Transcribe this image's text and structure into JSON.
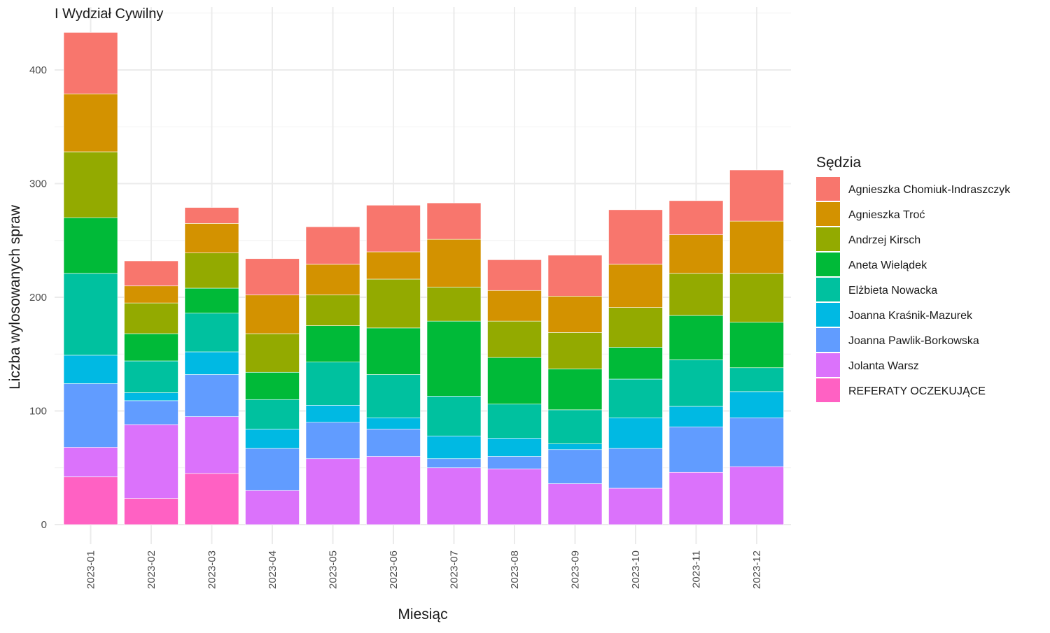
{
  "chart_data": {
    "type": "bar",
    "stacked": true,
    "title": "I Wydział Cywilny",
    "xlabel": "Miesiąc",
    "ylabel": "Liczba wylosowanych spraw",
    "ylim": [
      0,
      432
    ],
    "yticks": [
      0,
      100,
      200,
      300,
      400
    ],
    "grid": true,
    "legend_title": "Sędzia",
    "legend_position": "right",
    "categories": [
      "2023-01",
      "2023-02",
      "2023-03",
      "2023-04",
      "2023-05",
      "2023-06",
      "2023-07",
      "2023-08",
      "2023-09",
      "2023-10",
      "2023-11",
      "2023-12"
    ],
    "series": [
      {
        "name": "Agnieszka Chomiuk-Indraszczyk",
        "color": "#F8766D",
        "values": [
          54,
          22,
          14,
          32,
          33,
          41,
          32,
          27,
          36,
          48,
          30,
          45
        ]
      },
      {
        "name": "Agnieszka Troć",
        "color": "#D39200",
        "values": [
          51,
          15,
          26,
          34,
          27,
          24,
          42,
          27,
          32,
          38,
          34,
          46
        ]
      },
      {
        "name": "Andrzej Kirsch",
        "color": "#93AA00",
        "values": [
          58,
          27,
          31,
          34,
          27,
          43,
          30,
          32,
          32,
          35,
          37,
          43
        ]
      },
      {
        "name": "Aneta Wielądek",
        "color": "#00BA38",
        "values": [
          49,
          24,
          22,
          24,
          32,
          41,
          66,
          41,
          36,
          28,
          39,
          40
        ]
      },
      {
        "name": "Elżbieta Nowacka",
        "color": "#00C19F",
        "values": [
          72,
          28,
          34,
          26,
          38,
          38,
          35,
          30,
          30,
          34,
          41,
          21
        ]
      },
      {
        "name": "Joanna Kraśnik-Mazurek",
        "color": "#00B9E3",
        "values": [
          25,
          7,
          20,
          17,
          15,
          10,
          20,
          16,
          5,
          27,
          18,
          23
        ]
      },
      {
        "name": "Joanna Pawlik-Borkowska",
        "color": "#619CFF",
        "values": [
          56,
          21,
          37,
          37,
          32,
          24,
          8,
          11,
          30,
          35,
          40,
          43
        ]
      },
      {
        "name": "Jolanta Warsz",
        "color": "#DB72FB",
        "values": [
          26,
          65,
          50,
          30,
          58,
          60,
          50,
          49,
          36,
          32,
          46,
          51
        ]
      },
      {
        "name": "REFERATY OCZEKUJĄCE",
        "color": "#FF61C3",
        "values": [
          42,
          23,
          45,
          0,
          0,
          0,
          0,
          0,
          0,
          0,
          0,
          0
        ]
      }
    ]
  }
}
